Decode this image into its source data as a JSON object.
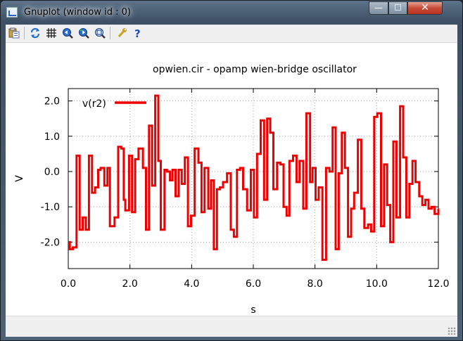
{
  "window": {
    "title": "Gnuplot (window id : 0)",
    "close_glyph": "✕",
    "minimize_glyph": "—",
    "maximize_glyph": "☐"
  },
  "toolbar": {
    "icons": [
      "copy-clipboard-icon",
      "replot-icon",
      "grid-icon",
      "zoom-previous-icon",
      "zoom-next-icon",
      "zoom-unzoom-icon",
      "options-wrench-icon",
      "help-icon"
    ],
    "help_glyph": "?"
  },
  "chart_data": {
    "type": "line",
    "title": "opwien.cir - opamp wien-bridge oscillator",
    "xlabel": "s",
    "ylabel": "V",
    "xlim": [
      0,
      12
    ],
    "ylim": [
      -2.75,
      2.35
    ],
    "xticks": [
      0.0,
      2.0,
      4.0,
      6.0,
      8.0,
      10.0,
      12.0
    ],
    "xtick_labels": [
      "0.0",
      "2.0",
      "4.0",
      "6.0",
      "8.0",
      "10.0",
      "12.0"
    ],
    "yticks": [
      2.0,
      1.0,
      0.0,
      -1.0,
      -2.0
    ],
    "ytick_labels": [
      "2.0",
      "1.0",
      "0.0",
      "-1.0",
      "-2.0"
    ],
    "grid": true,
    "legend": "top-left",
    "color": "#ee0000",
    "series": [
      {
        "name": "v(r2)",
        "x": [
          0.0,
          0.05,
          0.15,
          0.27,
          0.37,
          0.47,
          0.57,
          0.67,
          0.77,
          0.87,
          0.97,
          1.05,
          1.17,
          1.27,
          1.35,
          1.5,
          1.62,
          1.72,
          1.8,
          1.85,
          1.97,
          2.07,
          2.17,
          2.28,
          2.42,
          2.52,
          2.62,
          2.72,
          2.82,
          2.92,
          3.0,
          3.12,
          3.2,
          3.3,
          3.38,
          3.48,
          3.58,
          3.68,
          3.78,
          3.88,
          3.98,
          4.1,
          4.22,
          4.32,
          4.42,
          4.54,
          4.63,
          4.72,
          4.82,
          4.92,
          5.02,
          5.15,
          5.27,
          5.37,
          5.47,
          5.57,
          5.67,
          5.8,
          5.92,
          6.02,
          6.12,
          6.24,
          6.35,
          6.45,
          6.55,
          6.65,
          6.77,
          6.88,
          6.98,
          7.08,
          7.17,
          7.29,
          7.4,
          7.5,
          7.62,
          7.72,
          7.84,
          7.92,
          8.02,
          8.12,
          8.24,
          8.36,
          8.47,
          8.57,
          8.67,
          8.77,
          8.87,
          8.97,
          9.07,
          9.17,
          9.27,
          9.39,
          9.5,
          9.6,
          9.72,
          9.82,
          9.92,
          10.02,
          10.14,
          10.24,
          10.34,
          10.44,
          10.54,
          10.64,
          10.76,
          10.86,
          10.96,
          11.06,
          11.16,
          11.26,
          11.38,
          11.48,
          11.58,
          11.68,
          11.78,
          11.88,
          12.0
        ],
        "y": [
          -2.0,
          -2.2,
          -2.15,
          0.45,
          -1.65,
          -1.3,
          -1.65,
          0.45,
          -0.6,
          -0.45,
          0.05,
          0.1,
          -0.4,
          0.1,
          -1.55,
          -1.3,
          0.7,
          0.65,
          -0.8,
          -1.1,
          0.45,
          -1.15,
          0.35,
          0.65,
          0.1,
          -1.65,
          1.3,
          -0.4,
          2.15,
          0.3,
          -1.65,
          0.05,
          0.0,
          -0.25,
          0.05,
          -0.7,
          0.05,
          -0.35,
          0.4,
          -1.55,
          -1.25,
          0.65,
          0.25,
          -1.15,
          0.1,
          -1.05,
          -0.25,
          -2.2,
          -0.5,
          -0.45,
          -0.3,
          -0.05,
          -1.65,
          -1.85,
          0.05,
          0.1,
          -0.5,
          -1.1,
          0.05,
          -1.3,
          0.5,
          1.45,
          -0.8,
          1.5,
          1.1,
          -0.5,
          0.25,
          0.2,
          -1.0,
          -1.25,
          0.3,
          0.45,
          -0.3,
          0.3,
          -1.05,
          1.65,
          -0.3,
          0.1,
          -0.8,
          -0.45,
          -2.5,
          0.1,
          0.0,
          1.25,
          -2.2,
          -0.05,
          1.1,
          0.1,
          -1.85,
          -1.05,
          -0.6,
          0.9,
          -1.05,
          -1.6,
          -1.5,
          -1.7,
          1.55,
          1.65,
          -1.55,
          0.2,
          -0.95,
          -2.0,
          0.85,
          -1.3,
          1.85,
          0.4,
          -1.3,
          -0.35,
          0.3,
          -0.3,
          -0.7,
          -0.95,
          -0.8,
          -1.05,
          -1.0,
          -1.2,
          -1.05
        ]
      }
    ]
  }
}
